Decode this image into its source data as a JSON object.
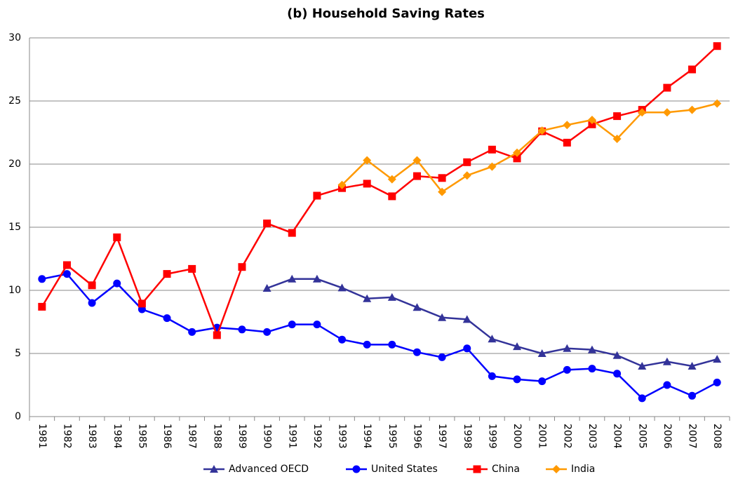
{
  "chart_data": {
    "type": "line",
    "title": "(b) Household Saving Rates",
    "categories": [
      "1981",
      "1982",
      "1983",
      "1984",
      "1985",
      "1986",
      "1987",
      "1988",
      "1989",
      "1990",
      "1991",
      "1992",
      "1993",
      "1994",
      "1995",
      "1996",
      "1997",
      "1998",
      "1999",
      "2000",
      "2001",
      "2002",
      "2003",
      "2004",
      "2005",
      "2006",
      "2007",
      "2008"
    ],
    "series": [
      {
        "name": "Advanced OECD",
        "color": "#333399",
        "marker": "triangle",
        "values": [
          null,
          null,
          null,
          null,
          null,
          null,
          null,
          null,
          null,
          10.17,
          10.9,
          10.9,
          10.2,
          9.35,
          9.45,
          8.65,
          7.85,
          7.7,
          6.15,
          5.55,
          5.0,
          5.4,
          5.3,
          4.85,
          4.0,
          4.35,
          4.0,
          4.55
        ]
      },
      {
        "name": "United States",
        "color": "#0000ff",
        "marker": "circle",
        "values": [
          10.9,
          11.3,
          9.0,
          10.55,
          8.5,
          7.8,
          6.7,
          7.05,
          6.9,
          6.7,
          7.3,
          7.3,
          6.1,
          5.7,
          5.7,
          5.1,
          4.7,
          5.4,
          3.2,
          2.95,
          2.8,
          3.7,
          3.8,
          3.4,
          1.45,
          2.5,
          1.65,
          2.7
        ]
      },
      {
        "name": "China",
        "color": "#ff0000",
        "marker": "square",
        "values": [
          8.7,
          12.0,
          10.4,
          14.2,
          8.95,
          11.3,
          11.7,
          6.45,
          11.85,
          15.3,
          14.55,
          17.5,
          18.1,
          18.45,
          17.45,
          19.05,
          18.9,
          20.15,
          21.15,
          20.45,
          22.6,
          21.7,
          23.15,
          23.8,
          24.3,
          26.05,
          27.5,
          29.35
        ]
      },
      {
        "name": "India",
        "color": "#ff9900",
        "marker": "diamond",
        "values": [
          null,
          null,
          null,
          null,
          null,
          null,
          null,
          null,
          null,
          null,
          null,
          null,
          18.35,
          20.3,
          18.8,
          20.3,
          17.8,
          19.1,
          19.8,
          20.9,
          22.65,
          23.1,
          23.5,
          22.0,
          24.1,
          24.1,
          24.3,
          24.8
        ]
      }
    ],
    "ylim": [
      0,
      30
    ],
    "yticks": [
      0,
      5,
      10,
      15,
      20,
      25,
      30
    ],
    "grid": true,
    "legend": "bottom"
  }
}
